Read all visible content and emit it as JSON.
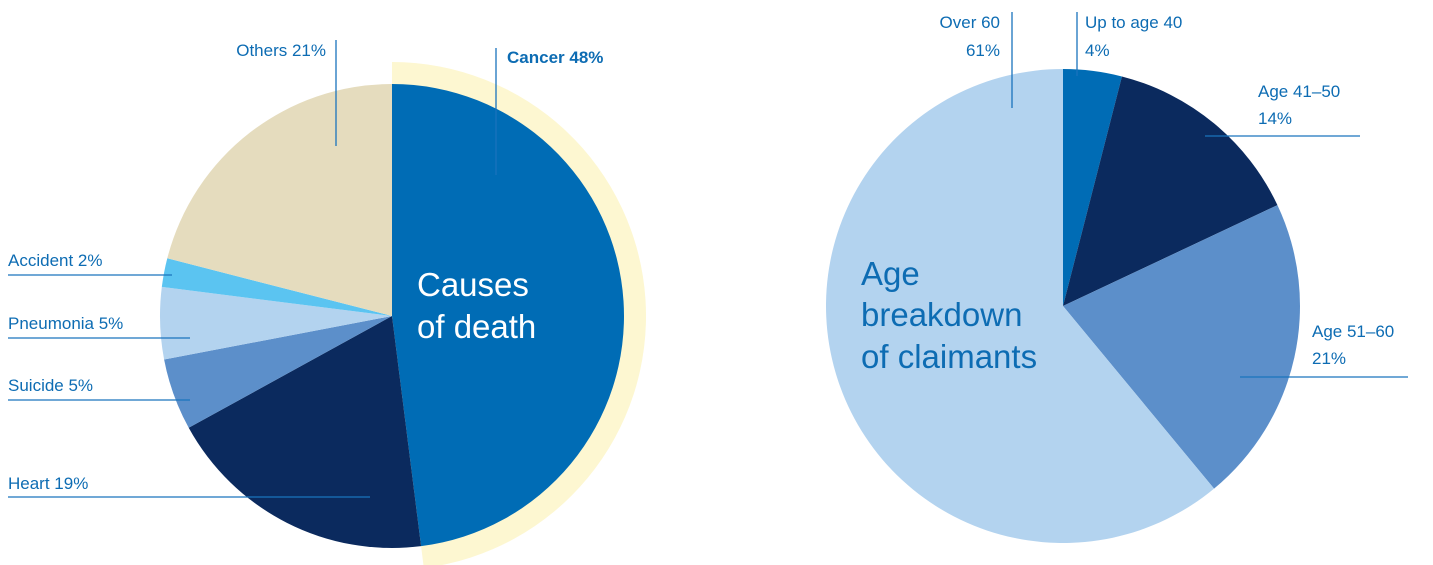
{
  "chart_data": [
    {
      "type": "pie",
      "title": "Causes of death",
      "title_lines": [
        "Causes",
        "of death"
      ],
      "unit": "%",
      "highlighted_slice": "Cancer",
      "slices": [
        {
          "name": "Cancer",
          "value": 48,
          "label": "Cancer 48%",
          "color": "#006cb5"
        },
        {
          "name": "Heart",
          "value": 19,
          "label": "Heart 19%",
          "color": "#0b2a5e"
        },
        {
          "name": "Suicide",
          "value": 5,
          "label": "Suicide 5%",
          "color": "#5c8fca"
        },
        {
          "name": "Pneumonia",
          "value": 5,
          "label": "Pneumonia 5%",
          "color": "#b3d3ef"
        },
        {
          "name": "Accident",
          "value": 2,
          "label": "Accident 2%",
          "color": "#5bc4f1"
        },
        {
          "name": "Others",
          "value": 21,
          "label": "Others 21%",
          "color": "#e5dcbe"
        }
      ],
      "highlight_color": "#fdf7d1"
    },
    {
      "type": "pie",
      "title": "Age breakdown of claimants",
      "title_lines": [
        "Age",
        "breakdown",
        "of claimants"
      ],
      "unit": "%",
      "slices": [
        {
          "name": "Up to age 40",
          "value": 4,
          "label_lines": [
            "Up to age 40",
            "4%"
          ],
          "color": "#006cb5"
        },
        {
          "name": "Age 41–50",
          "value": 14,
          "label_lines": [
            "Age 41–50",
            "14%"
          ],
          "color": "#0b2a5e"
        },
        {
          "name": "Age 51–60",
          "value": 21,
          "label_lines": [
            "Age 51–60",
            "21%"
          ],
          "color": "#5c8fca"
        },
        {
          "name": "Over 60",
          "value": 61,
          "label_lines": [
            "Over 60",
            "61%"
          ],
          "color": "#b3d3ef"
        }
      ]
    }
  ]
}
